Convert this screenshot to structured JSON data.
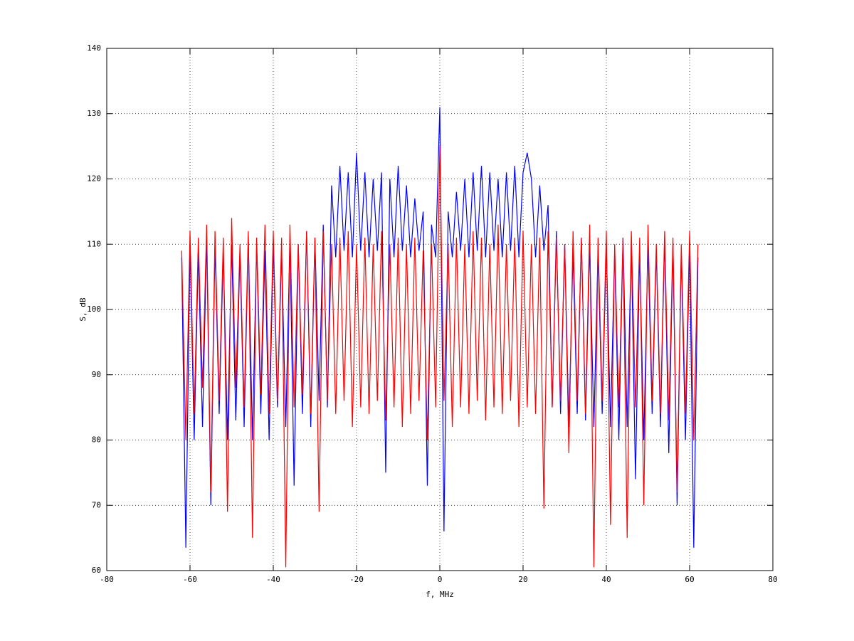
{
  "chart_data": {
    "type": "line",
    "xlabel": "f, MHz",
    "ylabel": "S, dB",
    "xlim": [
      -80,
      80
    ],
    "ylim": [
      60,
      140
    ],
    "xticks": [
      -80,
      -60,
      -40,
      -20,
      0,
      20,
      40,
      60,
      80
    ],
    "yticks": [
      60,
      70,
      80,
      90,
      100,
      110,
      120,
      130,
      140
    ],
    "grid": true,
    "x": [
      -62,
      -61,
      -60,
      -59,
      -58,
      -57,
      -56,
      -55,
      -54,
      -53,
      -52,
      -51,
      -50,
      -49,
      -48,
      -47,
      -46,
      -45,
      -44,
      -43,
      -42,
      -41,
      -40,
      -39,
      -38,
      -37,
      -36,
      -35,
      -34,
      -33,
      -32,
      -31,
      -30,
      -29,
      -28,
      -27,
      -26,
      -25,
      -24,
      -23,
      -22,
      -21,
      -20,
      -19,
      -18,
      -17,
      -16,
      -15,
      -14,
      -13,
      -12,
      -11,
      -10,
      -9,
      -8,
      -7,
      -6,
      -5,
      -4,
      -3,
      -2,
      -1,
      0,
      1,
      2,
      3,
      4,
      5,
      6,
      7,
      8,
      9,
      10,
      11,
      12,
      13,
      14,
      15,
      16,
      17,
      18,
      19,
      20,
      21,
      22,
      23,
      24,
      25,
      26,
      27,
      28,
      29,
      30,
      31,
      32,
      33,
      34,
      35,
      36,
      37,
      38,
      39,
      40,
      41,
      42,
      43,
      44,
      45,
      46,
      47,
      48,
      49,
      50,
      51,
      52,
      53,
      54,
      55,
      56,
      57,
      58,
      59,
      60,
      61,
      62
    ],
    "series": [
      {
        "color": "#0000ff",
        "values": [
          108,
          63.5,
          110,
          80,
          109,
          82,
          111,
          70,
          110,
          84,
          109,
          80,
          110,
          83,
          109,
          82,
          111,
          80,
          110,
          84,
          109,
          80,
          110,
          85,
          109,
          82,
          111,
          73,
          110,
          84,
          112,
          82,
          111,
          86,
          113,
          85,
          119,
          108,
          122,
          109,
          121,
          108,
          124,
          109,
          121,
          108,
          120,
          109,
          121,
          75,
          120,
          108,
          122,
          109,
          119,
          108,
          117,
          109,
          115,
          73,
          113,
          108,
          131,
          66,
          115,
          108,
          118,
          109,
          120,
          108,
          121,
          109,
          122,
          108,
          121,
          109,
          120,
          108,
          121,
          109,
          122,
          108,
          121,
          124,
          120,
          108,
          119,
          109,
          116,
          85,
          112,
          84,
          110,
          82,
          109,
          84,
          111,
          83,
          110,
          82,
          109,
          84,
          110,
          82,
          109,
          80,
          111,
          82,
          110,
          74,
          109,
          80,
          110,
          84,
          109,
          82,
          111,
          78,
          110,
          70,
          109,
          80,
          110,
          63.5,
          108
        ]
      },
      {
        "color": "#ff0000",
        "values": [
          109,
          80,
          112,
          84,
          111,
          88,
          113,
          72,
          112,
          86,
          111,
          69,
          114,
          88,
          110,
          85,
          112,
          65,
          111,
          87,
          113,
          84,
          112,
          86,
          111,
          60.5,
          113,
          85,
          110,
          87,
          112,
          84,
          111,
          69,
          112,
          86,
          110,
          84,
          111,
          86,
          112,
          82,
          110,
          85,
          111,
          84,
          110,
          86,
          112,
          83,
          110,
          85,
          111,
          82,
          110,
          84,
          111,
          86,
          109,
          80,
          110,
          85,
          125,
          86,
          110,
          82,
          111,
          85,
          110,
          84,
          112,
          86,
          111,
          83,
          110,
          85,
          113,
          84,
          110,
          86,
          111,
          82,
          112,
          85,
          110,
          84,
          111,
          69.5,
          112,
          85,
          111,
          86,
          110,
          78,
          112,
          86,
          111,
          84,
          113,
          60.5,
          111,
          86,
          112,
          67,
          110,
          85,
          111,
          65,
          112,
          85,
          111,
          70,
          113,
          86,
          110,
          84,
          112,
          83,
          111,
          72,
          110,
          84,
          112,
          80,
          110
        ]
      }
    ]
  }
}
